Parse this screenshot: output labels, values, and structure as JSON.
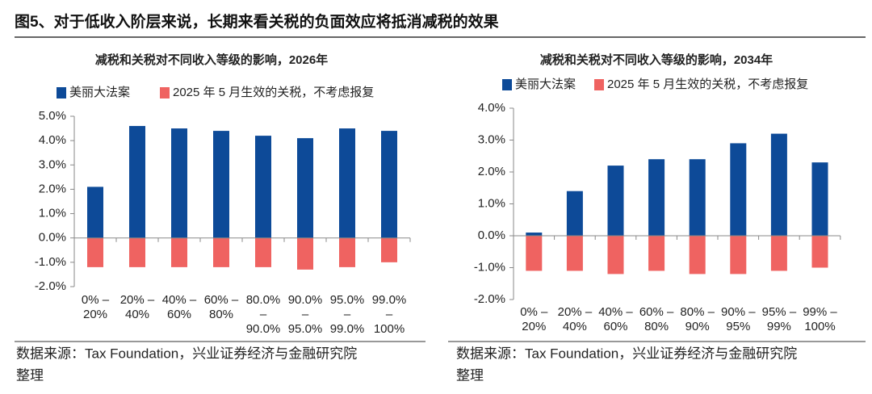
{
  "header": {
    "title": "图5、对于低收入阶层来说，长期来看关税的负面效应将抵消减税的效果"
  },
  "sources": [
    [
      "数据来源：Tax Foundation，兴业证券经济与金融研究院",
      "整理"
    ],
    [
      "数据来源：Tax Foundation，兴业证券经济与金融研究院",
      "整理"
    ]
  ],
  "chart_data": [
    {
      "type": "bar",
      "title": "减税和关税对不同收入等级的影响，2026年",
      "categories": [
        [
          "0% –",
          "20%"
        ],
        [
          "20% –",
          "40%"
        ],
        [
          "40% –",
          "60%"
        ],
        [
          "60% –",
          "80%"
        ],
        [
          "80.0%",
          "–",
          "90.0%"
        ],
        [
          "90.0%",
          "–",
          "95.0%"
        ],
        [
          "95.0%",
          "–",
          "99.0%"
        ],
        [
          "99.0%",
          "–",
          "100%"
        ]
      ],
      "series": [
        {
          "name": "美丽大法案",
          "color": "#0d4a98",
          "values": [
            2.1,
            4.6,
            4.5,
            4.4,
            4.2,
            4.1,
            4.5,
            4.4
          ]
        },
        {
          "name": "2025 年 5 月生效的关税，不考虑报复",
          "color": "#ef6361",
          "values": [
            -1.2,
            -1.2,
            -1.2,
            -1.2,
            -1.2,
            -1.3,
            -1.2,
            -1.0
          ]
        }
      ],
      "ylim": [
        -2,
        5
      ],
      "yticks": [
        {
          "value": -2,
          "label": "-2.0%"
        },
        {
          "value": -1,
          "label": "-1.0%"
        },
        {
          "value": 0,
          "label": "0.0%"
        },
        {
          "value": 1,
          "label": "1.0%"
        },
        {
          "value": 2,
          "label": "2.0%"
        },
        {
          "value": 3,
          "label": "3.0%"
        },
        {
          "value": 4,
          "label": "4.0%"
        },
        {
          "value": 5,
          "label": "5.0%"
        }
      ],
      "grid": false
    },
    {
      "type": "bar",
      "title": "减税和关税对不同收入等级的影响，2034年",
      "categories": [
        [
          "0% –",
          "20%"
        ],
        [
          "20% –",
          "40%"
        ],
        [
          "40% –",
          "60%"
        ],
        [
          "60% –",
          "80%"
        ],
        [
          "80% –",
          "90%"
        ],
        [
          "90% –",
          "95%"
        ],
        [
          "95% –",
          "99%"
        ],
        [
          "99% –",
          "100%"
        ]
      ],
      "series": [
        {
          "name": "美丽大法案",
          "color": "#0d4a98",
          "values": [
            0.1,
            1.4,
            2.2,
            2.4,
            2.4,
            2.9,
            3.2,
            2.3
          ]
        },
        {
          "name": "2025 年 5 月生效的关税，不考虑报复",
          "color": "#ef6361",
          "values": [
            -1.1,
            -1.1,
            -1.2,
            -1.1,
            -1.2,
            -1.2,
            -1.1,
            -1.0
          ]
        }
      ],
      "ylim": [
        -2,
        4
      ],
      "yticks": [
        {
          "value": -2,
          "label": "-2.0%"
        },
        {
          "value": -1,
          "label": "-1.0%"
        },
        {
          "value": 0,
          "label": "0.0%"
        },
        {
          "value": 1,
          "label": "1.0%"
        },
        {
          "value": 2,
          "label": "2.0%"
        },
        {
          "value": 3,
          "label": "3.0%"
        },
        {
          "value": 4,
          "label": "4.0%"
        }
      ],
      "grid": false
    }
  ]
}
